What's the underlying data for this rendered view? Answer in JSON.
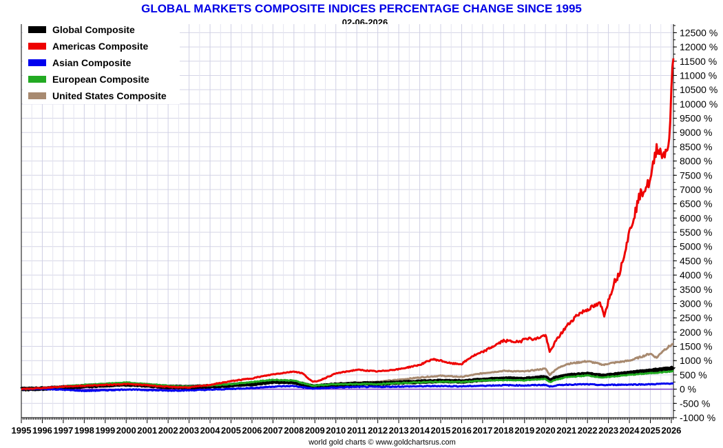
{
  "chart_data": {
    "type": "line",
    "title": "GLOBAL MARKETS COMPOSITE INDICES PERCENTAGE CHANGE SINCE 1995",
    "subtitle": "02-06-2026",
    "footer": "world gold charts © www.goldchartsrus.com",
    "ylim": [
      -1000,
      12800
    ],
    "xlim": [
      1995,
      2026.1
    ],
    "yticks": [
      -1000,
      -500,
      0,
      500,
      1000,
      1500,
      2000,
      2500,
      3000,
      3500,
      4000,
      4500,
      5000,
      5500,
      6000,
      6500,
      7000,
      7500,
      8000,
      8500,
      9000,
      9500,
      10000,
      10500,
      11000,
      11500,
      12000,
      12500
    ],
    "ytick_labels": [
      "-1000 %",
      "-500 %",
      "0 %",
      "500 %",
      "1000 %",
      "1500 %",
      "2000 %",
      "2500 %",
      "3000 %",
      "3500 %",
      "4000 %",
      "4500 %",
      "5000 %",
      "5500 %",
      "6000 %",
      "6500 %",
      "7000 %",
      "7500 %",
      "8000 %",
      "8500 %",
      "9000 %",
      "9500 %",
      "10000 %",
      "10500 %",
      "11000 %",
      "11500 %",
      "12000 %",
      "12500 %"
    ],
    "xticks": [
      1995,
      1996,
      1997,
      1998,
      1999,
      2000,
      2001,
      2002,
      2003,
      2004,
      2005,
      2006,
      2007,
      2008,
      2009,
      2010,
      2011,
      2012,
      2013,
      2014,
      2015,
      2016,
      2017,
      2018,
      2019,
      2020,
      2021,
      2022,
      2023,
      2024,
      2025,
      2026
    ],
    "xtick_labels": [
      "1995",
      "1996",
      "1997",
      "1998",
      "1999",
      "2000",
      "2001",
      "2002",
      "2003",
      "2004",
      "2005",
      "2006",
      "2007",
      "2008",
      "2009",
      "2010",
      "2011",
      "2012",
      "2013",
      "2014",
      "2015",
      "2016",
      "2017",
      "2018",
      "2019",
      "2020",
      "2021",
      "2022",
      "2023",
      "2024",
      "2025",
      "2026"
    ],
    "legend_position": "top-left",
    "series": [
      {
        "name": "United States Composite",
        "color": "#a88a70",
        "width": 3,
        "x": [
          1995,
          1996,
          1997,
          1998,
          1999,
          2000,
          2001,
          2002,
          2003,
          2004,
          2005,
          2006,
          2007,
          2008,
          2008.9,
          2009.2,
          2010,
          2011,
          2012,
          2013,
          2014,
          2015,
          2016,
          2017,
          2018,
          2019,
          2020,
          2020.2,
          2020.5,
          2021,
          2022,
          2022.8,
          2023,
          2024,
          2024.5,
          2025,
          2025.3,
          2025.6,
          2026,
          2026.1
        ],
        "y": [
          0,
          30,
          80,
          130,
          180,
          220,
          180,
          110,
          100,
          140,
          180,
          230,
          290,
          260,
          100,
          120,
          200,
          230,
          260,
          330,
          410,
          470,
          430,
          560,
          640,
          620,
          720,
          500,
          700,
          880,
          980,
          850,
          900,
          1000,
          1120,
          1250,
          1100,
          1350,
          1550,
          1580
        ]
      },
      {
        "name": "Global Composite",
        "color": "#000000",
        "width": 6,
        "x": [
          1995,
          1996,
          1997,
          1998,
          1999,
          2000,
          2001,
          2002,
          2003,
          2004,
          2005,
          2006,
          2007,
          2008,
          2008.9,
          2009.2,
          2010,
          2011,
          2012,
          2013,
          2014,
          2015,
          2016,
          2017,
          2018,
          2019,
          2020,
          2020.2,
          2020.5,
          2021,
          2022,
          2022.8,
          2023,
          2024,
          2025,
          2026,
          2026.1
        ],
        "y": [
          0,
          20,
          60,
          100,
          140,
          170,
          130,
          80,
          70,
          100,
          140,
          180,
          260,
          250,
          90,
          110,
          160,
          190,
          200,
          230,
          260,
          290,
          270,
          330,
          370,
          360,
          420,
          300,
          400,
          480,
          530,
          460,
          490,
          570,
          650,
          730,
          780
        ]
      },
      {
        "name": "European Composite",
        "color": "#22aa22",
        "width": 3,
        "x": [
          1995,
          1996,
          1997,
          1998,
          1999,
          2000,
          2001,
          2002,
          2003,
          2004,
          2005,
          2006,
          2007,
          2008,
          2008.9,
          2009.2,
          2010,
          2011,
          2012,
          2013,
          2014,
          2015,
          2016,
          2017,
          2018,
          2019,
          2020,
          2020.2,
          2020.5,
          2021,
          2022,
          2022.8,
          2023,
          2024,
          2025,
          2026,
          2026.1
        ],
        "y": [
          0,
          30,
          90,
          150,
          190,
          230,
          180,
          120,
          90,
          130,
          180,
          250,
          330,
          300,
          120,
          140,
          170,
          180,
          180,
          210,
          240,
          260,
          250,
          300,
          320,
          310,
          360,
          250,
          330,
          420,
          480,
          400,
          430,
          500,
          560,
          620,
          640
        ]
      },
      {
        "name": "Asian Composite",
        "color": "#0000ee",
        "width": 3,
        "x": [
          1995,
          1996,
          1997,
          1998,
          1999,
          2000,
          2001,
          2002,
          2003,
          2004,
          2005,
          2006,
          2007,
          2008,
          2008.9,
          2009.2,
          2010,
          2011,
          2012,
          2013,
          2014,
          2015,
          2016,
          2017,
          2018,
          2019,
          2020,
          2020.2,
          2020.5,
          2021,
          2022,
          2022.8,
          2023,
          2024,
          2025,
          2026,
          2026.1
        ],
        "y": [
          0,
          10,
          -20,
          -60,
          -40,
          -10,
          -30,
          -50,
          -40,
          -20,
          10,
          40,
          90,
          110,
          20,
          30,
          60,
          80,
          80,
          90,
          100,
          110,
          100,
          120,
          140,
          130,
          150,
          90,
          130,
          160,
          170,
          140,
          150,
          160,
          170,
          200,
          210
        ]
      },
      {
        "name": "Americas Composite",
        "color": "#ee0000",
        "width": 3,
        "x": [
          1995,
          1996,
          1997,
          1998,
          1999,
          2000,
          2001,
          2002,
          2003,
          2004,
          2005,
          2006,
          2007,
          2008,
          2008.4,
          2008.9,
          2009.2,
          2010,
          2011,
          2012,
          2013,
          2014,
          2014.6,
          2015,
          2015.5,
          2016,
          2016.5,
          2017,
          2018,
          2018.8,
          2019,
          2019.5,
          2020,
          2020.2,
          2020.5,
          2021,
          2021.5,
          2022,
          2022.6,
          2022.8,
          2023,
          2023.3,
          2023.5,
          2024,
          2024.5,
          2025,
          2025.3,
          2025.6,
          2025.9,
          2026,
          2026.1
        ],
        "y": [
          0,
          40,
          90,
          120,
          150,
          180,
          140,
          80,
          60,
          150,
          280,
          380,
          520,
          620,
          560,
          250,
          300,
          550,
          680,
          620,
          700,
          850,
          1050,
          1000,
          900,
          880,
          1150,
          1300,
          1700,
          1650,
          1800,
          1750,
          1900,
          1300,
          1700,
          2200,
          2600,
          2800,
          3000,
          2600,
          3100,
          3800,
          4000,
          5500,
          6800,
          7300,
          8500,
          8200,
          8600,
          10500,
          11600
        ]
      }
    ]
  }
}
